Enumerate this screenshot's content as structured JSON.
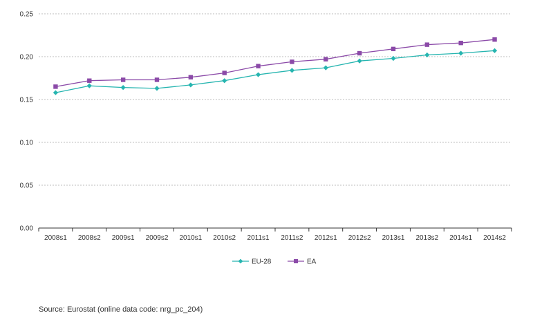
{
  "chart_data": {
    "type": "line",
    "title": "",
    "xlabel": "",
    "ylabel": "",
    "categories": [
      "2008s1",
      "2008s2",
      "2009s1",
      "2009s2",
      "2010s1",
      "2010s2",
      "2011s1",
      "2011s2",
      "2012s1",
      "2012s2",
      "2013s1",
      "2013s2",
      "2014s1",
      "2014s2"
    ],
    "series": [
      {
        "name": "EU-28",
        "color": "#26b5b0",
        "marker": "diamond",
        "values": [
          0.158,
          0.166,
          0.164,
          0.163,
          0.167,
          0.172,
          0.179,
          0.184,
          0.187,
          0.195,
          0.198,
          0.202,
          0.204,
          0.207
        ]
      },
      {
        "name": "EA",
        "color": "#8b4aa8",
        "marker": "square",
        "values": [
          0.165,
          0.172,
          0.173,
          0.173,
          0.176,
          0.181,
          0.189,
          0.194,
          0.197,
          0.204,
          0.209,
          0.214,
          0.216,
          0.22
        ]
      }
    ],
    "ylim": [
      0,
      0.25
    ],
    "yticks": [
      "0.00",
      "0.05",
      "0.10",
      "0.15",
      "0.20",
      "0.25"
    ],
    "grid": true,
    "legend": "bottom-center"
  },
  "source": "Source: Eurostat (online data code: nrg_pc_204)"
}
